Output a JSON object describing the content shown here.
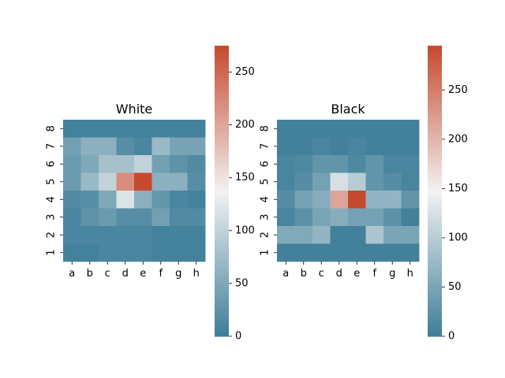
{
  "chart_data": [
    {
      "type": "heatmap",
      "title": "White",
      "x_categories": [
        "a",
        "b",
        "c",
        "d",
        "e",
        "f",
        "g",
        "h"
      ],
      "y_categories": [
        "8",
        "7",
        "6",
        "5",
        "4",
        "3",
        "2",
        "1"
      ],
      "values": [
        [
          5,
          5,
          5,
          5,
          5,
          5,
          5,
          5
        ],
        [
          40,
          60,
          60,
          20,
          10,
          70,
          45,
          45
        ],
        [
          35,
          50,
          80,
          80,
          100,
          40,
          25,
          15
        ],
        [
          35,
          70,
          100,
          220,
          275,
          60,
          60,
          20
        ],
        [
          15,
          20,
          50,
          120,
          60,
          30,
          10,
          5
        ],
        [
          10,
          25,
          35,
          20,
          20,
          40,
          15,
          15
        ],
        [
          10,
          10,
          10,
          10,
          10,
          5,
          5,
          5
        ],
        [
          5,
          5,
          10,
          10,
          10,
          5,
          5,
          5
        ]
      ],
      "colorbar": {
        "min": 0,
        "max": 275,
        "ticks": [
          0,
          50,
          100,
          150,
          200,
          250
        ]
      }
    },
    {
      "type": "heatmap",
      "title": "Black",
      "x_categories": [
        "a",
        "b",
        "c",
        "d",
        "e",
        "f",
        "g",
        "h"
      ],
      "y_categories": [
        "8",
        "7",
        "6",
        "5",
        "4",
        "3",
        "2",
        "1"
      ],
      "values": [
        [
          5,
          5,
          5,
          5,
          5,
          5,
          5,
          5
        ],
        [
          5,
          5,
          10,
          5,
          10,
          5,
          5,
          5
        ],
        [
          10,
          15,
          30,
          30,
          15,
          30,
          10,
          10
        ],
        [
          10,
          20,
          45,
          125,
          100,
          30,
          20,
          10
        ],
        [
          20,
          45,
          60,
          215,
          295,
          70,
          70,
          30
        ],
        [
          10,
          25,
          50,
          60,
          45,
          45,
          25,
          5
        ],
        [
          55,
          55,
          70,
          5,
          5,
          90,
          50,
          50
        ],
        [
          5,
          5,
          5,
          5,
          5,
          5,
          5,
          5
        ]
      ],
      "colorbar": {
        "min": 0,
        "max": 295,
        "ticks": [
          0,
          50,
          100,
          150,
          200,
          250
        ]
      }
    }
  ]
}
